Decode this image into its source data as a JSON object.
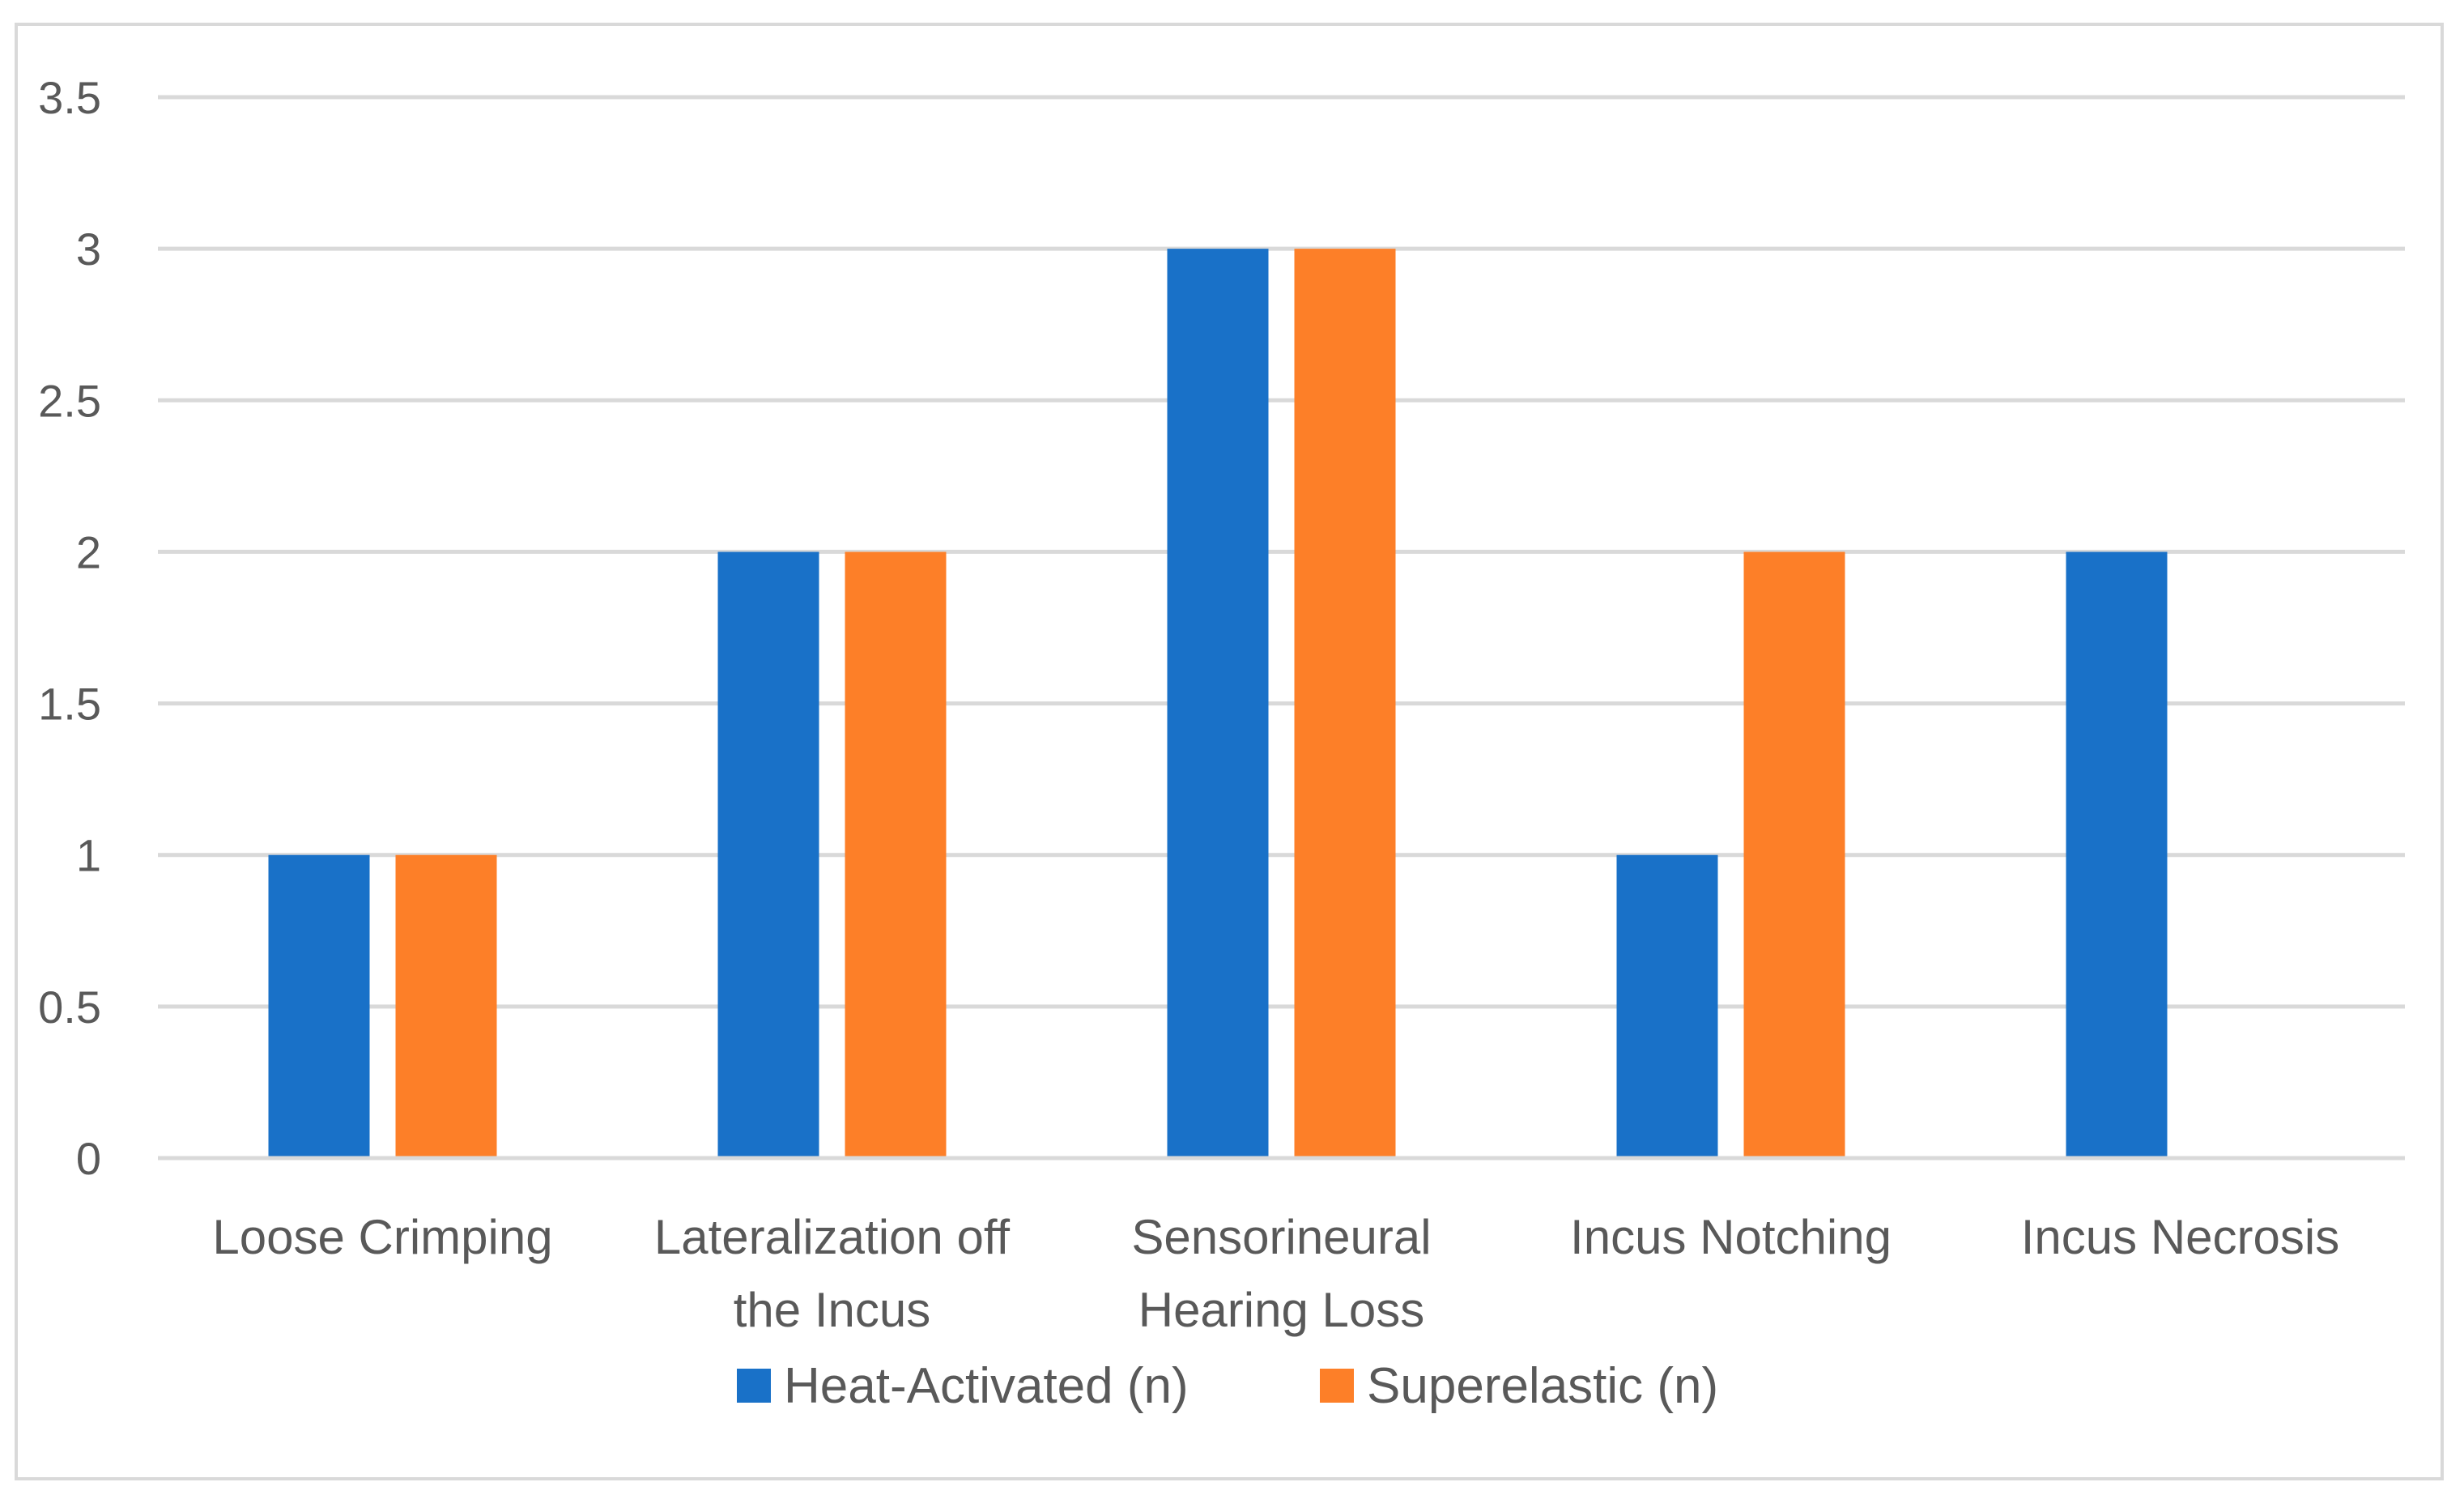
{
  "chart_data": {
    "type": "bar",
    "title": "",
    "xlabel": "",
    "ylabel": "",
    "ylim": [
      0,
      3.5
    ],
    "yticks": [
      0,
      0.5,
      1,
      1.5,
      2,
      2.5,
      3,
      3.5
    ],
    "ytick_labels": [
      "0",
      "0.5",
      "1",
      "1.5",
      "2",
      "2.5",
      "3",
      "3.5"
    ],
    "grid": true,
    "legend_position": "bottom",
    "categories": [
      [
        "Loose Crimping"
      ],
      [
        "Lateralization off",
        "the Incus"
      ],
      [
        "Sensorineural",
        "Hearing Loss"
      ],
      [
        "Incus Notching"
      ],
      [
        "Incus Necrosis"
      ]
    ],
    "series": [
      {
        "name": "Heat-Activated (n)",
        "color": "#1971c8",
        "values": [
          1,
          2,
          3,
          1,
          2
        ]
      },
      {
        "name": "Superelastic (n)",
        "color": "#fd7f28",
        "values": [
          1,
          2,
          3,
          2,
          0
        ]
      }
    ]
  }
}
